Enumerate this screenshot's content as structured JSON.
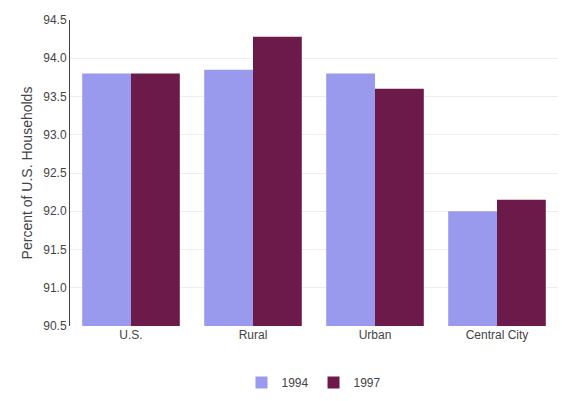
{
  "chart_data": {
    "type": "bar",
    "categories": [
      "U.S.",
      "Rural",
      "Urban",
      "Central City"
    ],
    "series": [
      {
        "name": "1994",
        "color": "#9999ee",
        "values": [
          93.8,
          93.85,
          93.8,
          92.0
        ]
      },
      {
        "name": "1997",
        "color": "#6b1a4a",
        "values": [
          93.8,
          94.28,
          93.6,
          92.15
        ]
      }
    ],
    "ylabel": "Percent of U.S. Households",
    "ylim": [
      90.5,
      94.5
    ],
    "yticks": [
      90.5,
      {
        "value": 91,
        "label": "91.0"
      },
      91.5,
      {
        "value": 92,
        "label": "92.0"
      },
      92.5,
      {
        "value": 93,
        "label": "93.0"
      },
      93.5,
      {
        "value": 94,
        "label": "94.0"
      },
      94.5
    ],
    "grid": true,
    "legend": "bottom"
  }
}
